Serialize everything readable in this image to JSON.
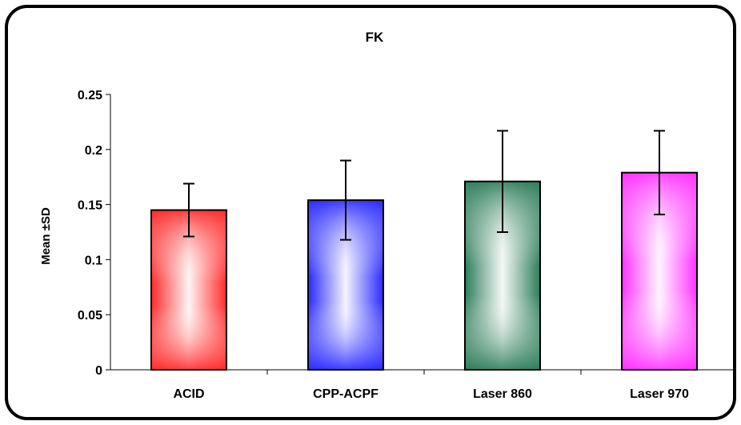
{
  "chart_data": {
    "type": "bar",
    "title": "FK",
    "xlabel": "",
    "ylabel": "Mean ±SD",
    "categories": [
      "ACID",
      "CPP-ACPF",
      "Laser 860",
      "Laser 970"
    ],
    "values": [
      0.145,
      0.154,
      0.171,
      0.179
    ],
    "errors": [
      0.024,
      0.036,
      0.046,
      0.038
    ],
    "ylim": [
      0,
      0.25
    ],
    "yticks": [
      0,
      0.05,
      0.1,
      0.15,
      0.2,
      0.25
    ],
    "ytick_labels": [
      "0",
      "0.05",
      "0.1",
      "0.15",
      "0.2",
      "0.25"
    ],
    "grid": false,
    "legend": "none",
    "colors": [
      "#ff2a2a",
      "#2a2aff",
      "#2e7d5a",
      "#ff33ff"
    ]
  }
}
